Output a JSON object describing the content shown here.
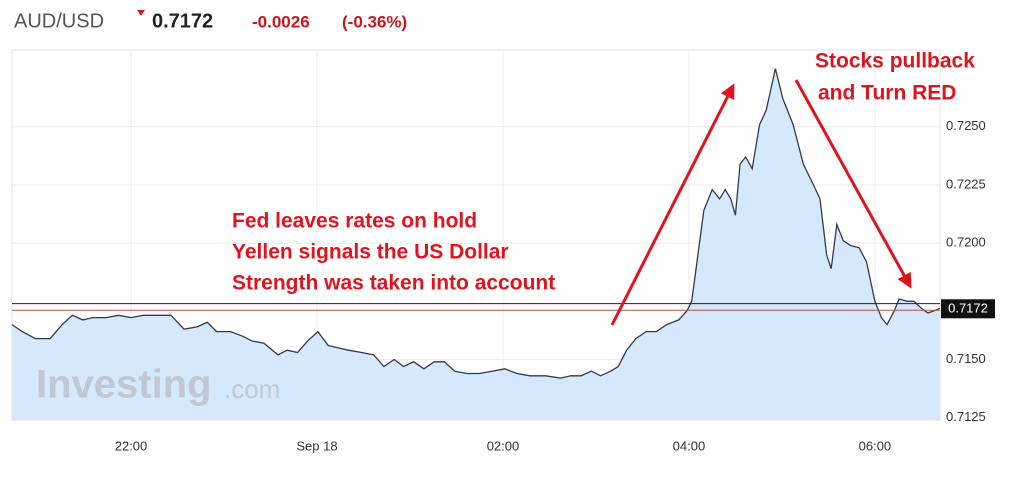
{
  "chart_data": {
    "type": "area",
    "symbol": "AUD/USD",
    "price": 0.7172,
    "change": "-0.0026",
    "change_percent": "(-0.36%)",
    "watermark": [
      "Investing",
      ".com"
    ],
    "annotations": [
      {
        "lines": [
          "Fed leaves rates on hold",
          "Yellen signals the US Dollar",
          "Strength was taken into account"
        ]
      },
      {
        "lines": [
          "Stocks pullback",
          "and Turn RED"
        ]
      }
    ],
    "series": [
      {
        "color": "#333a4c",
        "fill": "#d6e8fb",
        "x": [
          20.72,
          20.83,
          20.97,
          21.13,
          21.26,
          21.37,
          21.48,
          21.59,
          21.73,
          21.87,
          22.0,
          22.13,
          22.27,
          22.43,
          22.57,
          22.71,
          22.82,
          22.92,
          23.07,
          23.2,
          23.3,
          23.43,
          23.58,
          23.68,
          23.79,
          23.9,
          24.01,
          24.12,
          24.23,
          24.34,
          24.48,
          24.61,
          24.72,
          24.83,
          24.93,
          25.04,
          25.15,
          25.26,
          25.37,
          25.48,
          25.61,
          25.75,
          25.89,
          26.02,
          26.15,
          26.29,
          26.46,
          26.62,
          26.73,
          26.84,
          26.95,
          27.05,
          27.16,
          27.24,
          27.33,
          27.43,
          27.54,
          27.65,
          27.76,
          27.89,
          27.98,
          28.03,
          28.09,
          28.16,
          28.25,
          28.33,
          28.39,
          28.45,
          28.5,
          28.55,
          28.61,
          28.68,
          28.76,
          28.83,
          28.87,
          28.93,
          29.01,
          29.12,
          29.23,
          29.34,
          29.41,
          29.48,
          29.53,
          29.59,
          29.66,
          29.74,
          29.83,
          29.91,
          30.0,
          30.07,
          30.13,
          30.21,
          30.26,
          30.35,
          30.42,
          30.5,
          30.57,
          30.64,
          30.7
        ],
        "values": [
          0.7165,
          0.7162,
          0.7159,
          0.7159,
          0.7165,
          0.7169,
          0.7167,
          0.7168,
          0.7168,
          0.7169,
          0.7168,
          0.7169,
          0.7169,
          0.7169,
          0.7163,
          0.7164,
          0.7166,
          0.7162,
          0.7162,
          0.716,
          0.7158,
          0.7157,
          0.7152,
          0.7154,
          0.7153,
          0.7158,
          0.7162,
          0.7156,
          0.7155,
          0.7154,
          0.7153,
          0.7152,
          0.7147,
          0.715,
          0.7147,
          0.7149,
          0.7146,
          0.7149,
          0.7149,
          0.7145,
          0.7144,
          0.7144,
          0.7145,
          0.7146,
          0.7144,
          0.7143,
          0.7143,
          0.7142,
          0.7143,
          0.7143,
          0.7145,
          0.7143,
          0.7145,
          0.7147,
          0.7154,
          0.7159,
          0.7162,
          0.7162,
          0.7165,
          0.7167,
          0.7171,
          0.7175,
          0.7193,
          0.7214,
          0.7223,
          0.7219,
          0.7223,
          0.7219,
          0.7212,
          0.7234,
          0.7237,
          0.7232,
          0.7251,
          0.7257,
          0.7264,
          0.7275,
          0.7262,
          0.7251,
          0.7234,
          0.7225,
          0.7219,
          0.7195,
          0.7189,
          0.7208,
          0.7201,
          0.7199,
          0.7198,
          0.7192,
          0.7175,
          0.7168,
          0.7165,
          0.7171,
          0.7176,
          0.7175,
          0.7175,
          0.7172,
          0.717,
          0.7171,
          0.7172
        ]
      }
    ],
    "last_price": 0.7172,
    "last_price_color": "#c0504d",
    "reference_line": 0.7174,
    "reference_color": "#222",
    "xlim": [
      20.72,
      30.7
    ],
    "xticks": [
      {
        "value": 22,
        "label": "22:00"
      },
      {
        "value": 24,
        "label": "Sep 18"
      },
      {
        "value": 26,
        "label": "02:00"
      },
      {
        "value": 28,
        "label": "04:00"
      },
      {
        "value": 30,
        "label": "06:00"
      }
    ],
    "ylim": [
      0.7124,
      0.7283
    ],
    "yticks": [
      {
        "value": 0.7125,
        "label": "0.7125"
      },
      {
        "value": 0.715,
        "label": "0.7150"
      },
      {
        "value": 0.72,
        "label": "0.7200"
      },
      {
        "value": 0.7225,
        "label": "0.7225"
      },
      {
        "value": 0.725,
        "label": "0.7250"
      }
    ],
    "grid": true
  }
}
